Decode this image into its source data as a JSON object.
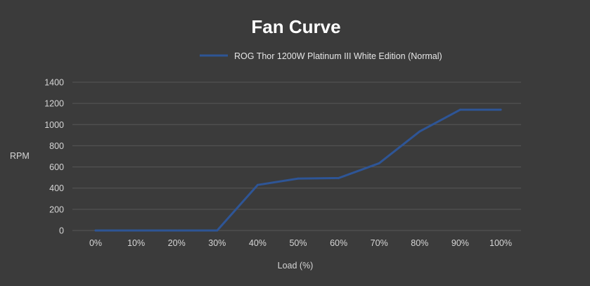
{
  "chart_data": {
    "type": "line",
    "title": "Fan Curve",
    "xlabel": "Load (%)",
    "ylabel": "RPM",
    "categories": [
      "0%",
      "10%",
      "20%",
      "30%",
      "40%",
      "50%",
      "60%",
      "70%",
      "80%",
      "90%",
      "100%"
    ],
    "y_ticks": [
      "0",
      "200",
      "400",
      "600",
      "800",
      "1000",
      "1200",
      "1400"
    ],
    "ylim": [
      0,
      1400
    ],
    "grid": true,
    "legend_position": "top",
    "series": [
      {
        "name": "ROG Thor 1200W Platinum III White Edition (Normal)",
        "color": "#2e5596",
        "values": [
          0,
          0,
          0,
          0,
          430,
          490,
          495,
          635,
          935,
          1140,
          1140
        ]
      }
    ]
  },
  "colors": {
    "background": "#3b3b3b",
    "gridline": "#575757",
    "axis_text": "#d6d6d6",
    "title_text": "#ffffff"
  }
}
